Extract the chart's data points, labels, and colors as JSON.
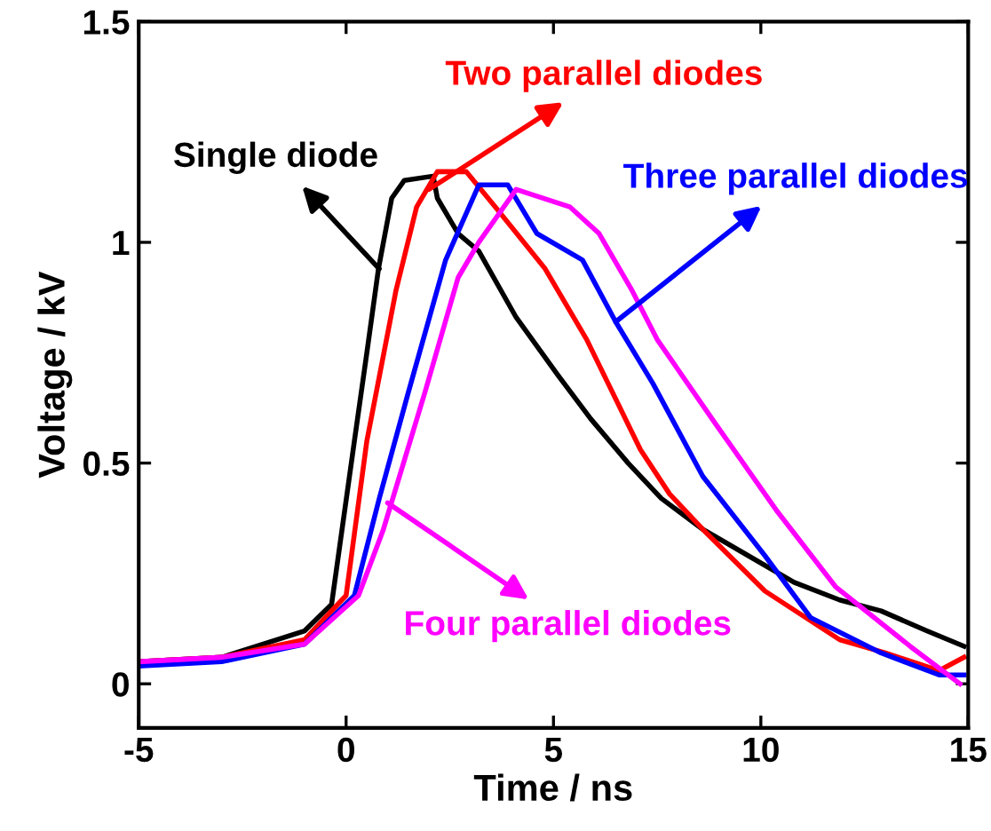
{
  "chart_data": {
    "type": "line",
    "xlabel": "Time / ns",
    "ylabel": "Voltage / kV",
    "xlim": [
      -5,
      15
    ],
    "ylim": [
      -0.1,
      1.5
    ],
    "xticks": [
      -5,
      0,
      5,
      10,
      15
    ],
    "yticks": [
      0,
      0.5,
      1,
      1.5
    ],
    "grid": false,
    "marker": "none",
    "line_style": "solid",
    "series": [
      {
        "color": "#000000",
        "x": [
          -5,
          -3,
          -1,
          -0.35,
          0.2,
          0.5,
          0.78,
          1.1,
          1.4,
          2.1,
          2.2,
          2.7,
          3.2,
          4.1,
          5.1,
          5.9,
          6.8,
          7.6,
          8.6,
          9.7,
          10.8,
          11.9,
          12.9,
          14,
          14.9
        ],
        "values": [
          0.05,
          0.06,
          0.12,
          0.18,
          0.55,
          0.75,
          0.94,
          1.1,
          1.14,
          1.15,
          1.1,
          1.02,
          0.98,
          0.83,
          0.7,
          0.6,
          0.5,
          0.42,
          0.35,
          0.29,
          0.23,
          0.19,
          0.165,
          0.12,
          0.085
        ]
      },
      {
        "color": "#ff0000",
        "x": [
          -5,
          -3,
          -1,
          0,
          0.5,
          1.2,
          1.7,
          2.2,
          2.9,
          3.6,
          4.8,
          5.8,
          7.1,
          7.8,
          8.6,
          10.1,
          11.9,
          13,
          14.3,
          14.9
        ],
        "values": [
          0.05,
          0.06,
          0.1,
          0.2,
          0.55,
          0.89,
          1.08,
          1.16,
          1.16,
          1.08,
          0.94,
          0.78,
          0.53,
          0.43,
          0.35,
          0.21,
          0.1,
          0.07,
          0.03,
          0.06
        ]
      },
      {
        "color": "#0000ff",
        "x": [
          -5,
          -3,
          -1,
          0.2,
          0.8,
          1.5,
          2.4,
          3.2,
          3.9,
          4.6,
          5.7,
          6.5,
          7.4,
          8.6,
          10.1,
          11.2,
          12.9,
          14.3,
          14.9
        ],
        "values": [
          0.04,
          0.05,
          0.09,
          0.2,
          0.42,
          0.66,
          0.96,
          1.13,
          1.13,
          1.02,
          0.96,
          0.82,
          0.68,
          0.47,
          0.29,
          0.15,
          0.07,
          0.02,
          0.02
        ]
      },
      {
        "color": "#ff00ff",
        "x": [
          -5,
          -3,
          -1,
          0.3,
          0.9,
          1.9,
          2.7,
          3.2,
          4.1,
          5.4,
          6.1,
          6.9,
          7.5,
          8.9,
          10.4,
          11.8,
          13.6,
          14.8
        ],
        "values": [
          0.05,
          0.06,
          0.09,
          0.2,
          0.35,
          0.66,
          0.92,
          1.0,
          1.12,
          1.08,
          1.02,
          0.89,
          0.78,
          0.59,
          0.39,
          0.22,
          0.085,
          0.0
        ]
      }
    ],
    "annotations": [
      {
        "text": "Single diode",
        "x": 0.8,
        "y": 0.94
      },
      {
        "text": "Two parallel diodes",
        "x": 2.0,
        "y": 1.12
      },
      {
        "text": "Three parallel diodes",
        "x": 6.5,
        "y": 0.82
      },
      {
        "text": "Four parallel diodes",
        "x": 1.0,
        "y": 0.41
      }
    ]
  }
}
